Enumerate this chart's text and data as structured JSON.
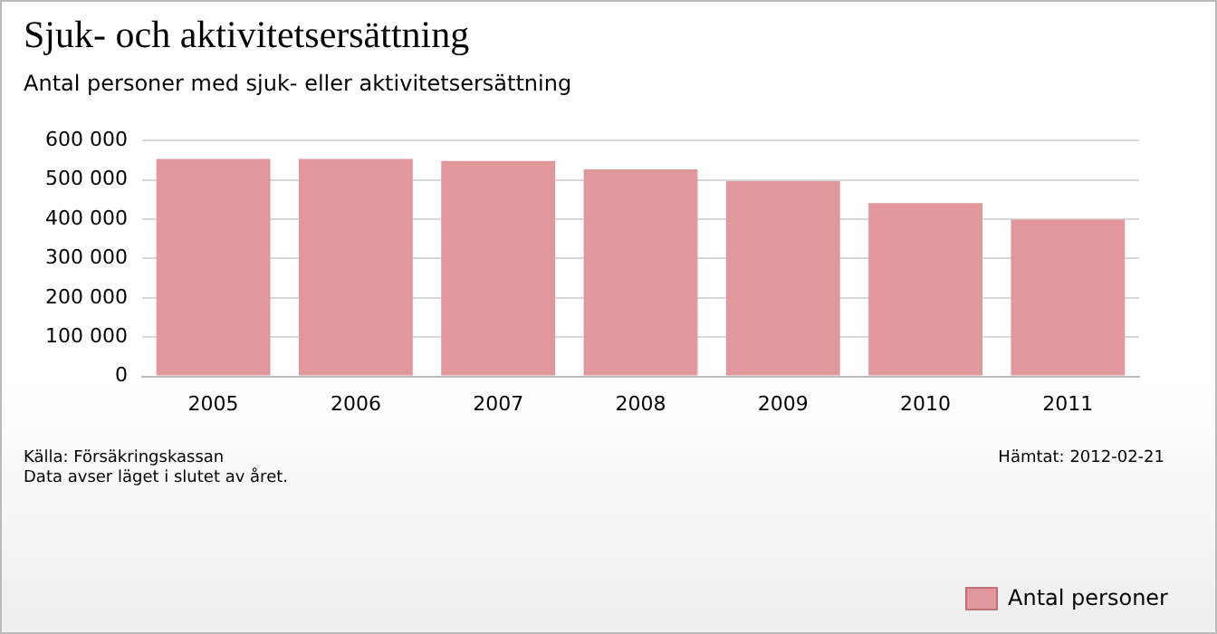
{
  "chart_data": {
    "type": "bar",
    "title": "Sjuk- och aktivitetsersättning",
    "subtitle": "Antal personer med sjuk- eller aktivitetsersättning",
    "categories": [
      "2005",
      "2006",
      "2007",
      "2008",
      "2009",
      "2010",
      "2011"
    ],
    "series": [
      {
        "name": "Antal personer",
        "color": "#e1979b",
        "values": [
          553000,
          553000,
          548000,
          527000,
          497000,
          441000,
          399000
        ]
      }
    ],
    "ylim": [
      0,
      600000
    ],
    "yticks": [
      {
        "value": 0,
        "label": "0"
      },
      {
        "value": 100000,
        "label": "100 000"
      },
      {
        "value": 200000,
        "label": "200 000"
      },
      {
        "value": 300000,
        "label": "300 000"
      },
      {
        "value": 400000,
        "label": "400 000"
      },
      {
        "value": 500000,
        "label": "500 000"
      },
      {
        "value": 600000,
        "label": "600 000"
      }
    ],
    "grid": "y",
    "legend": "bottom right",
    "annotations": [
      "Källa: Försäkringskassan",
      "Data avser läget i slutet av året.",
      "Hämtat: 2012-02-21"
    ]
  }
}
